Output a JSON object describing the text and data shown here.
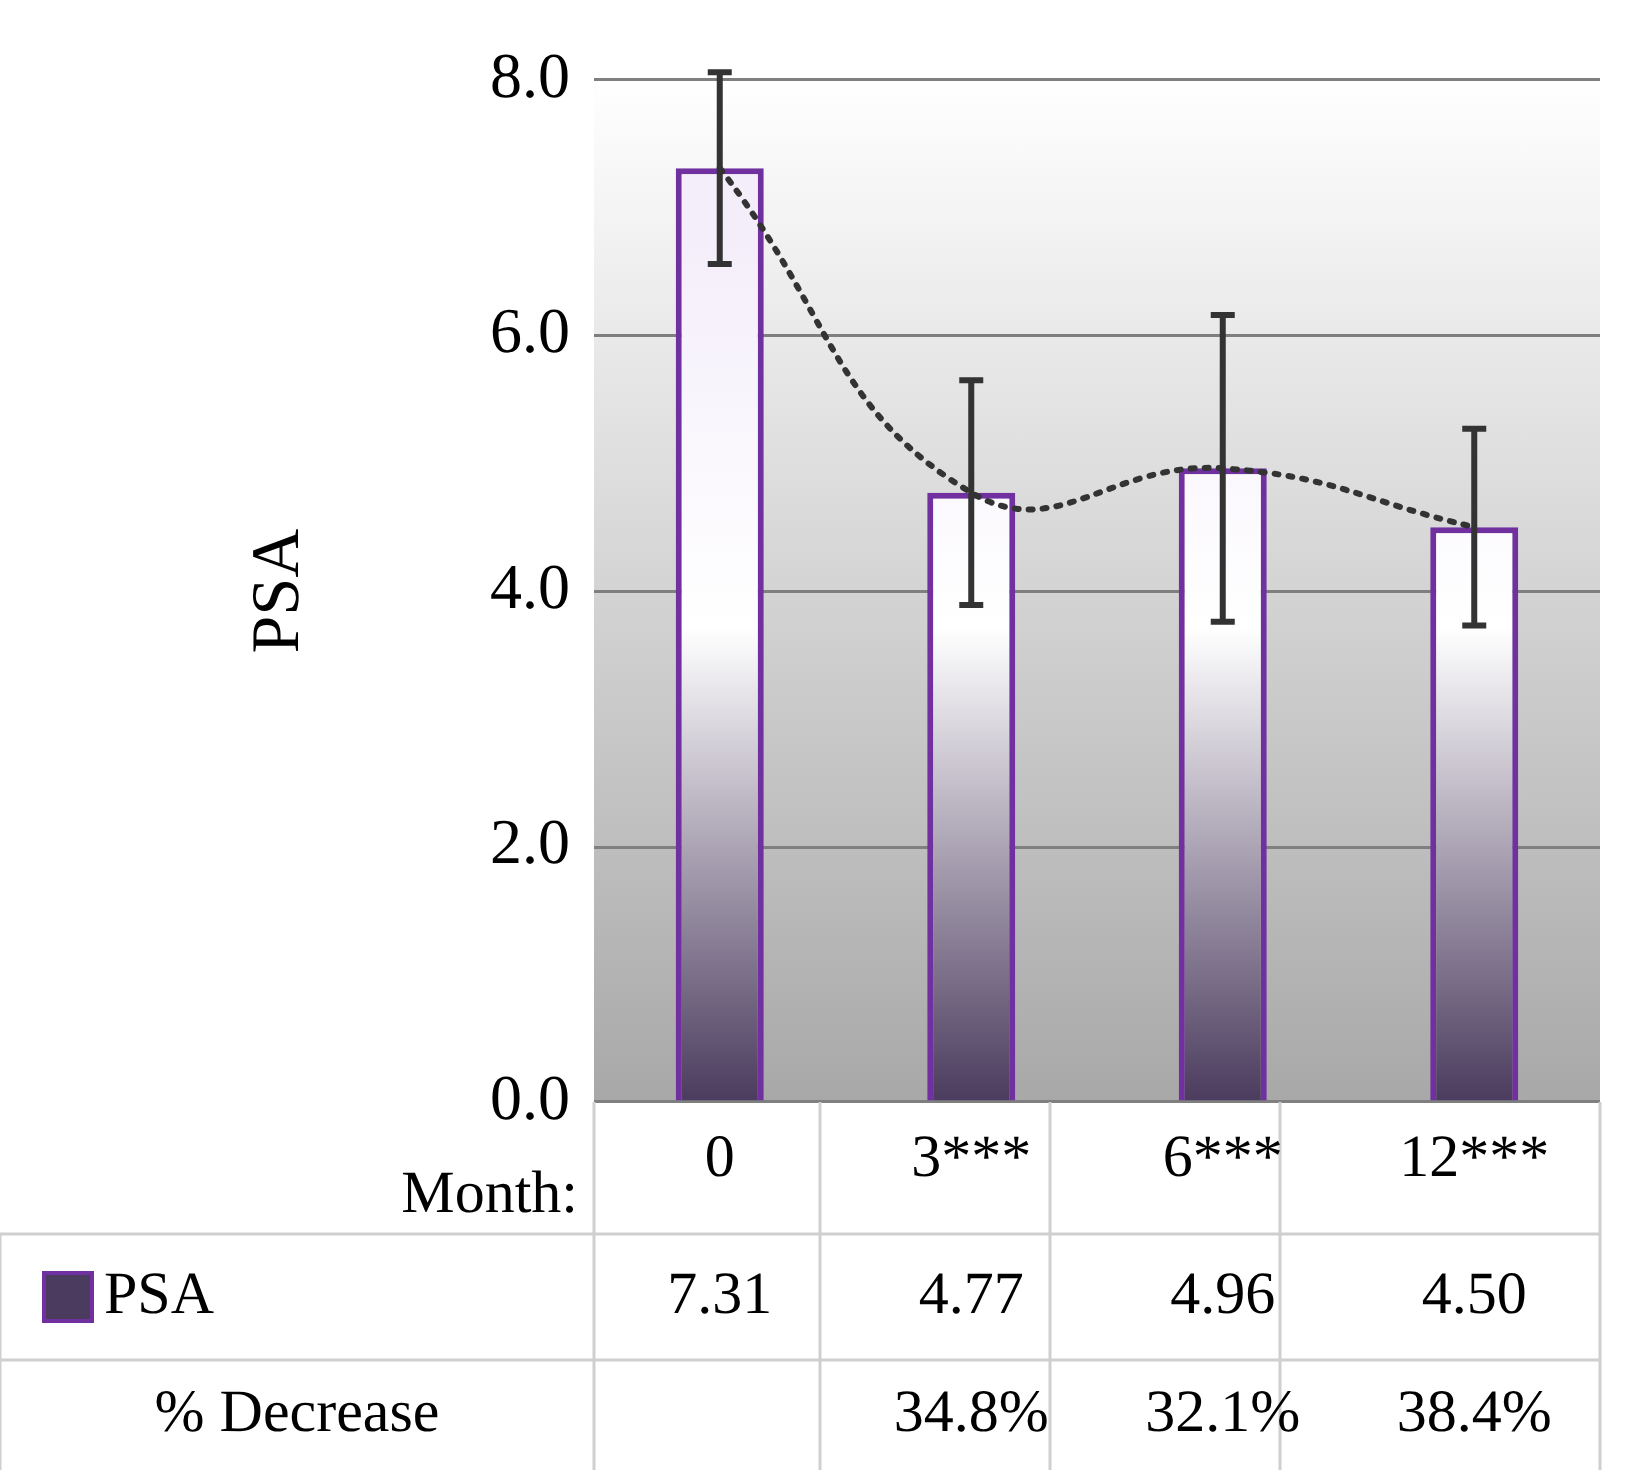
{
  "chart_data": {
    "type": "bar",
    "ylabel": "PSA",
    "xlabel": "Month:",
    "categories": [
      "0",
      "3***",
      "6***",
      "12***"
    ],
    "series": [
      {
        "name": "PSA",
        "color": "#7030a0",
        "values": [
          7.31,
          4.77,
          4.96,
          4.5
        ],
        "value_labels": [
          "7.31",
          "4.77",
          "4.96",
          "4.50"
        ],
        "errors": [
          0.75,
          0.88,
          1.2,
          0.77
        ]
      },
      {
        "type": "line",
        "x": [
          "0",
          "3***",
          "6***",
          "12***"
        ],
        "color": "#333333",
        "values": [
          7.31,
          4.77,
          4.96,
          4.5
        ],
        "line_style": "dotted",
        "marker": "none"
      }
    ],
    "ylim": [
      0,
      8
    ],
    "yticks": [
      {
        "value": 0,
        "label": "0.0"
      },
      {
        "value": 2,
        "label": "2.0"
      },
      {
        "value": 4,
        "label": "4.0"
      },
      {
        "value": 6,
        "label": "6.0"
      },
      {
        "value": 8,
        "label": "8.0"
      }
    ],
    "grid": "y",
    "legend": "bottom",
    "annotations": [
      "% Decrease",
      "34.8%",
      "32.1%",
      "38.4%"
    ]
  }
}
